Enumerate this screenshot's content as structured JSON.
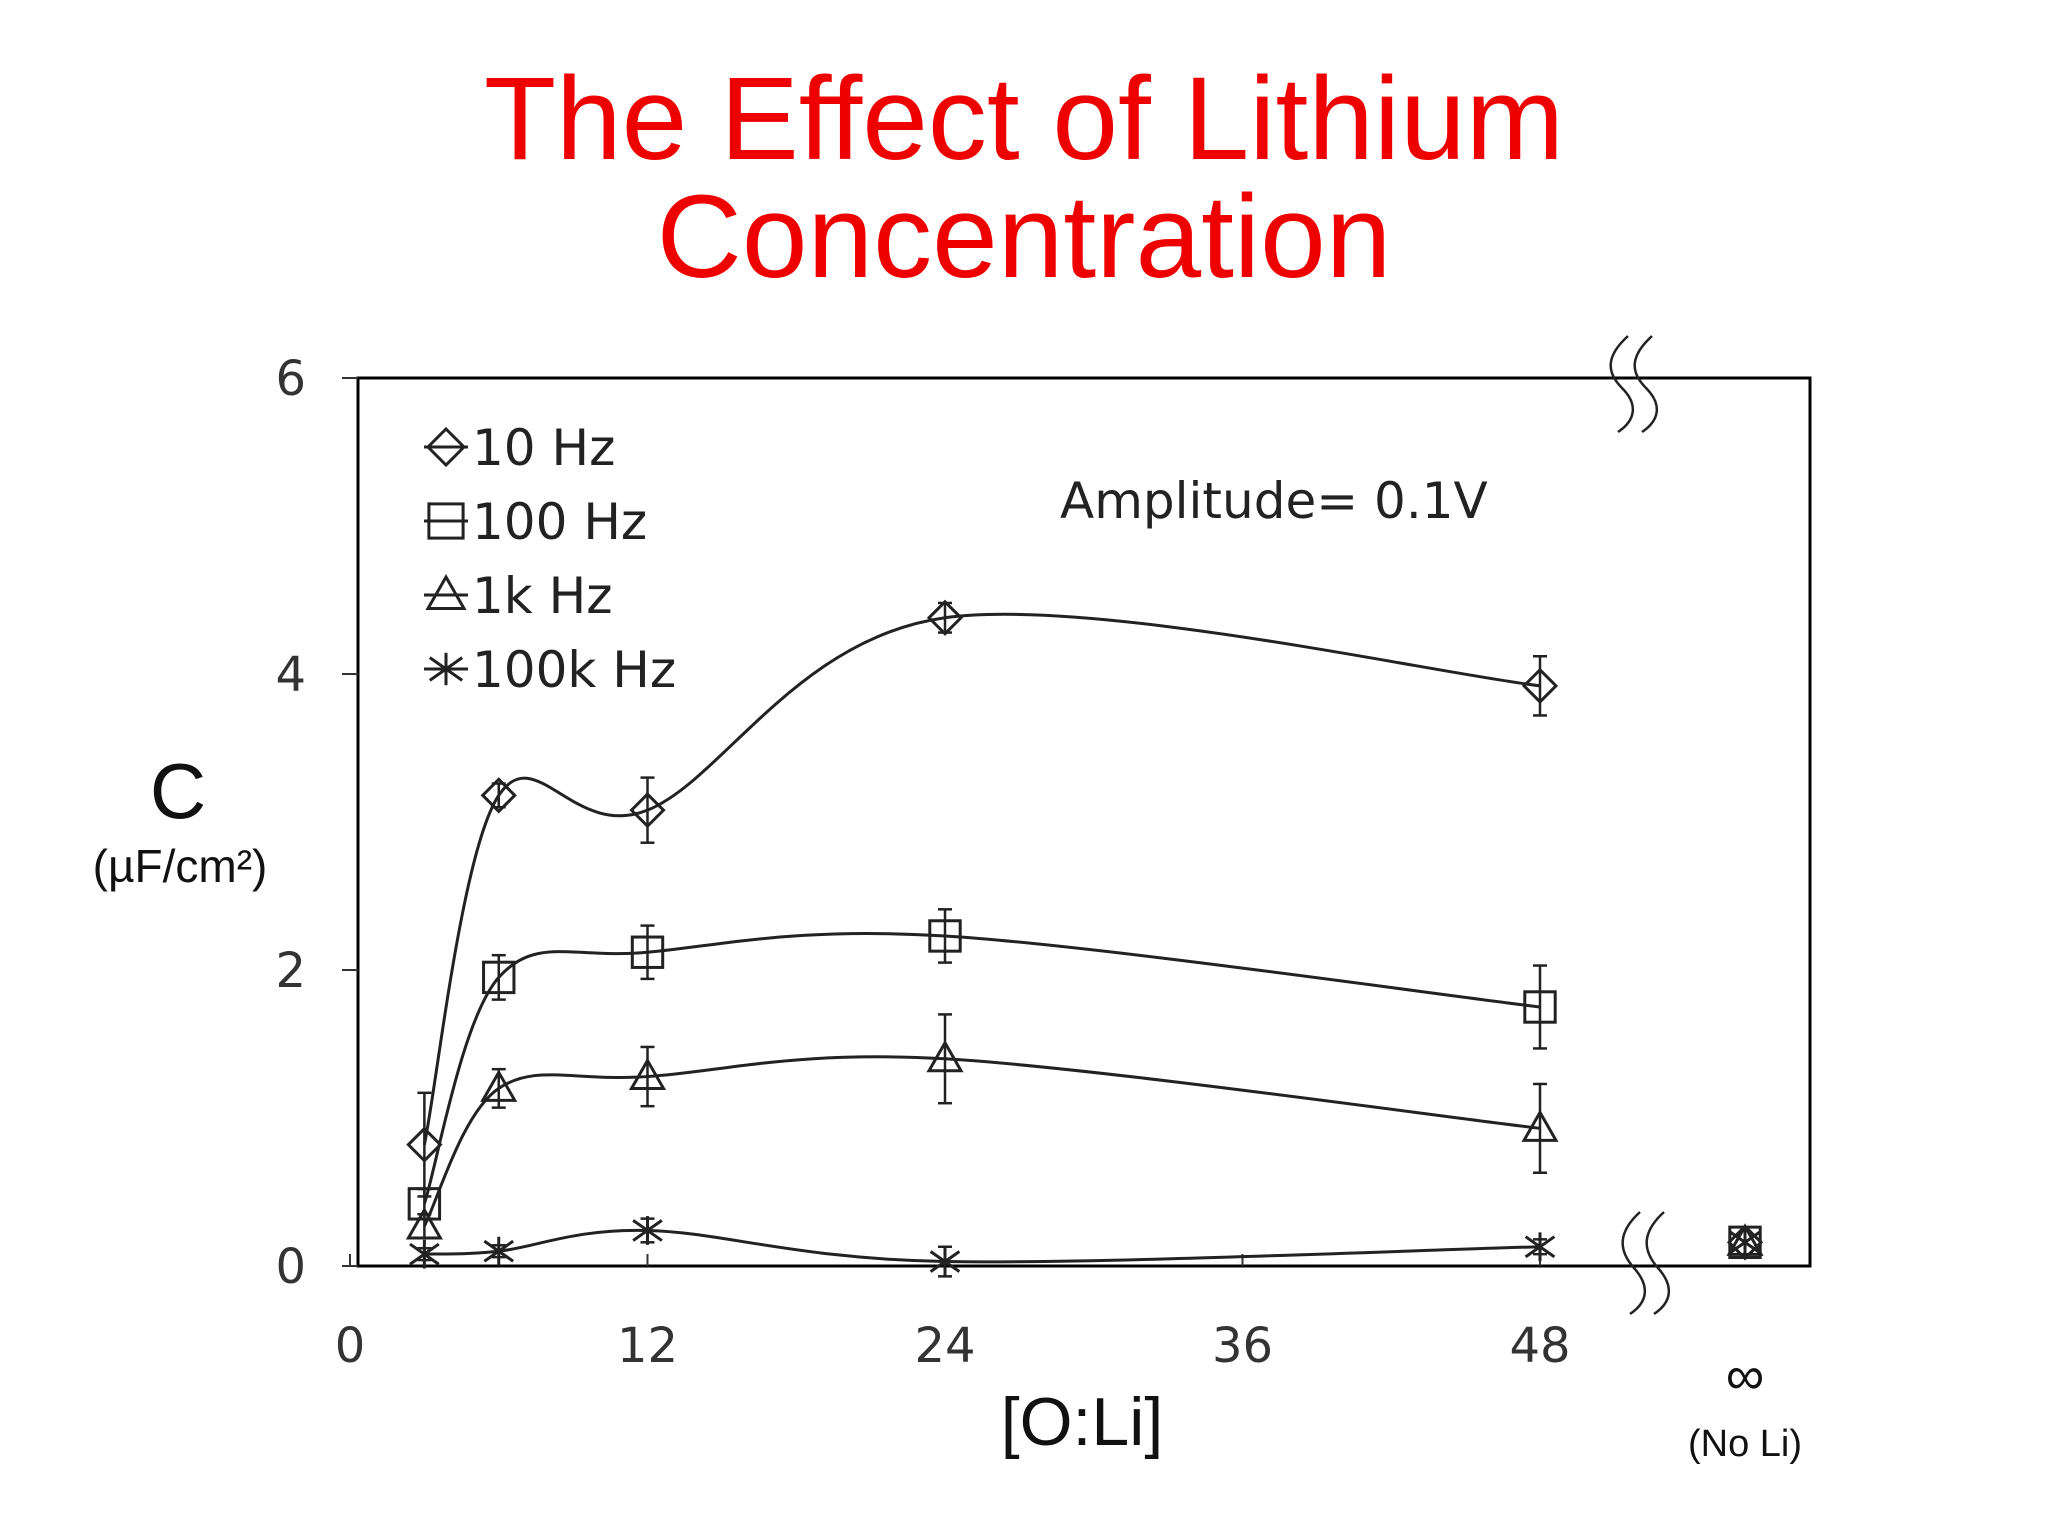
{
  "title_lines": [
    "The Effect of Lithium",
    "Concentration"
  ],
  "colors": {
    "title": "#ee0000",
    "ink": "#222222",
    "frame": "#000000"
  },
  "chart_data": {
    "type": "line",
    "xlabel": "[O:Li]",
    "ylabel": "C",
    "ylabel_unit": "(µF/cm²)",
    "x_ticks": [
      "0",
      "12",
      "24",
      "36",
      "48"
    ],
    "y_ticks": [
      "0",
      "2",
      "4",
      "6"
    ],
    "xlim": [
      0,
      58
    ],
    "ylim": [
      0,
      6
    ],
    "infinity_symbol": "∞",
    "infinity_note": "(No Li)",
    "annotation": "Amplitude= 0.1V",
    "legend_position": "top-left",
    "grid": false,
    "x": [
      3,
      6,
      12,
      24,
      48
    ],
    "series": [
      {
        "name": "10 Hz",
        "marker": "diamond",
        "values": [
          0.82,
          3.18,
          3.08,
          4.38,
          3.92
        ],
        "errors": [
          0.35,
          0.08,
          0.22,
          0.1,
          0.2
        ],
        "no_li": 0.16
      },
      {
        "name": "100 Hz",
        "marker": "square",
        "values": [
          0.42,
          1.95,
          2.12,
          2.23,
          1.75
        ],
        "errors": [
          0.1,
          0.15,
          0.18,
          0.18,
          0.28
        ],
        "no_li": 0.16
      },
      {
        "name": "1k Hz",
        "marker": "triangle",
        "values": [
          0.27,
          1.2,
          1.28,
          1.4,
          0.93
        ],
        "errors": [
          0.08,
          0.13,
          0.2,
          0.3,
          0.3
        ],
        "no_li": 0.16
      },
      {
        "name": "100k Hz",
        "marker": "cross",
        "values": [
          0.08,
          0.1,
          0.24,
          0.03,
          0.13
        ],
        "errors": [
          0.04,
          0.04,
          0.08,
          0.1,
          0.05
        ],
        "no_li": 0.16
      }
    ]
  }
}
